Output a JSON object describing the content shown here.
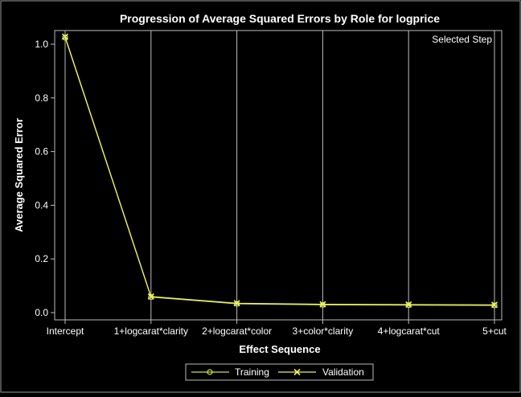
{
  "chart_data": {
    "type": "line",
    "title": "Progression of Average Squared Errors by Role for logprice",
    "xlabel": "Effect Sequence",
    "ylabel": "Average Squared Error",
    "categories": [
      "Intercept",
      "1+logcarat*clarity",
      "2+logcarat*color",
      "3+color*clarity",
      "4+logcarat*cut",
      "5+cut"
    ],
    "ylim": [
      0,
      1.0
    ],
    "yticks": [
      "0.0",
      "0.2",
      "0.4",
      "0.6",
      "0.8",
      "1.0"
    ],
    "series": [
      {
        "name": "Training",
        "marker": "circle",
        "color": "#c8e04a",
        "values": [
          1.025,
          0.058,
          0.033,
          0.029,
          0.028,
          0.027
        ]
      },
      {
        "name": "Validation",
        "marker": "x",
        "color": "#f0f060",
        "values": [
          1.028,
          0.06,
          0.035,
          0.031,
          0.03,
          0.029
        ]
      }
    ],
    "selected_step_label": "Selected Step",
    "selected_step": "5+cut",
    "grid": "vertical",
    "legend_position": "bottom"
  }
}
